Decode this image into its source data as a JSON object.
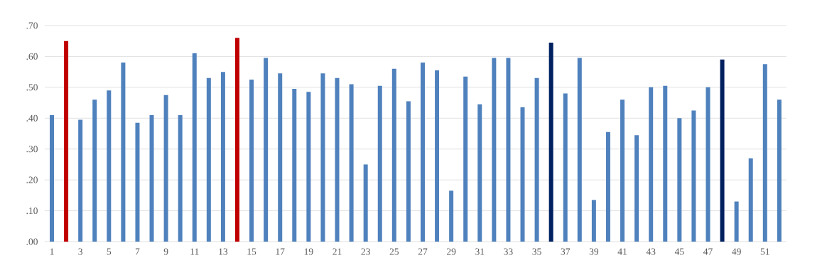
{
  "chart_data": {
    "type": "bar",
    "categories": [
      "1",
      null,
      "3",
      null,
      "5",
      null,
      "7",
      null,
      "9",
      null,
      "11",
      null,
      "13",
      null,
      "15",
      null,
      "17",
      null,
      "19",
      null,
      "21",
      null,
      "23",
      null,
      "25",
      null,
      "27",
      null,
      "29",
      null,
      "31",
      null,
      "33",
      null,
      "35",
      null,
      "37",
      null,
      "39",
      null,
      "41",
      null,
      "43",
      null,
      "45",
      null,
      "47",
      null,
      "49",
      null,
      "51",
      null
    ],
    "values": [
      0.41,
      0.65,
      0.395,
      0.46,
      0.49,
      0.58,
      0.385,
      0.41,
      0.475,
      0.41,
      0.61,
      0.53,
      0.55,
      0.66,
      0.525,
      0.595,
      0.545,
      0.495,
      0.485,
      0.545,
      0.53,
      0.51,
      0.25,
      0.505,
      0.56,
      0.455,
      0.58,
      0.555,
      0.165,
      0.535,
      0.445,
      0.595,
      0.595,
      0.435,
      0.53,
      0.645,
      0.48,
      0.595,
      0.135,
      0.355,
      0.46,
      0.345,
      0.5,
      0.505,
      0.4,
      0.425,
      0.5,
      0.59,
      0.13,
      0.27,
      0.575,
      0.46
    ],
    "colors": [
      "#4f81bd",
      "#c00000",
      "#4f81bd",
      "#4f81bd",
      "#4f81bd",
      "#4f81bd",
      "#4f81bd",
      "#4f81bd",
      "#4f81bd",
      "#4f81bd",
      "#4f81bd",
      "#4f81bd",
      "#4f81bd",
      "#c00000",
      "#4f81bd",
      "#4f81bd",
      "#4f81bd",
      "#4f81bd",
      "#4f81bd",
      "#4f81bd",
      "#4f81bd",
      "#4f81bd",
      "#4f81bd",
      "#4f81bd",
      "#4f81bd",
      "#4f81bd",
      "#4f81bd",
      "#4f81bd",
      "#4f81bd",
      "#4f81bd",
      "#4f81bd",
      "#4f81bd",
      "#4f81bd",
      "#4f81bd",
      "#4f81bd",
      "#002060",
      "#4f81bd",
      "#4f81bd",
      "#4f81bd",
      "#4f81bd",
      "#4f81bd",
      "#4f81bd",
      "#4f81bd",
      "#4f81bd",
      "#4f81bd",
      "#4f81bd",
      "#4f81bd",
      "#002060",
      "#4f81bd",
      "#4f81bd",
      "#4f81bd",
      "#4f81bd"
    ],
    "ylim": [
      0,
      0.7
    ],
    "yticks": [
      {
        "value": 0,
        "label": ".00"
      },
      {
        "value": 0.1,
        "label": ".10"
      },
      {
        "value": 0.2,
        "label": ".20"
      },
      {
        "value": 0.3,
        "label": ".30"
      },
      {
        "value": 0.4,
        "label": ".40"
      },
      {
        "value": 0.5,
        "label": ".50"
      },
      {
        "value": 0.6,
        "label": ".60"
      },
      {
        "value": 0.7,
        "label": ".70"
      }
    ],
    "grid": "y"
  }
}
